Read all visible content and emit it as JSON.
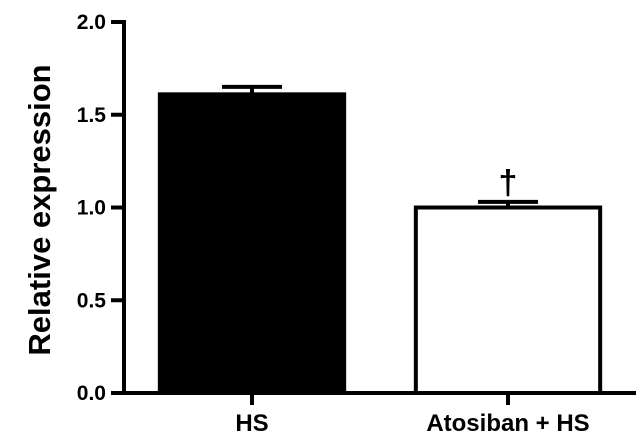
{
  "chart_data": {
    "type": "bar",
    "title": "",
    "xlabel": "",
    "ylabel": "Relative expression",
    "categories": [
      "HS",
      "Atosiban + HS"
    ],
    "series": [
      {
        "values": [
          1.61,
          1.0
        ],
        "errors": [
          0.04,
          0.03
        ],
        "fill_colors": [
          "#000000",
          "#ffffff"
        ]
      }
    ],
    "ylim": [
      0,
      2.0
    ],
    "yticks": [
      "0.0",
      "0.5",
      "1.0",
      "1.5",
      "2.0"
    ],
    "grid": false,
    "annotations": [
      {
        "category": "Atosiban + HS",
        "text": "†"
      }
    ]
  }
}
